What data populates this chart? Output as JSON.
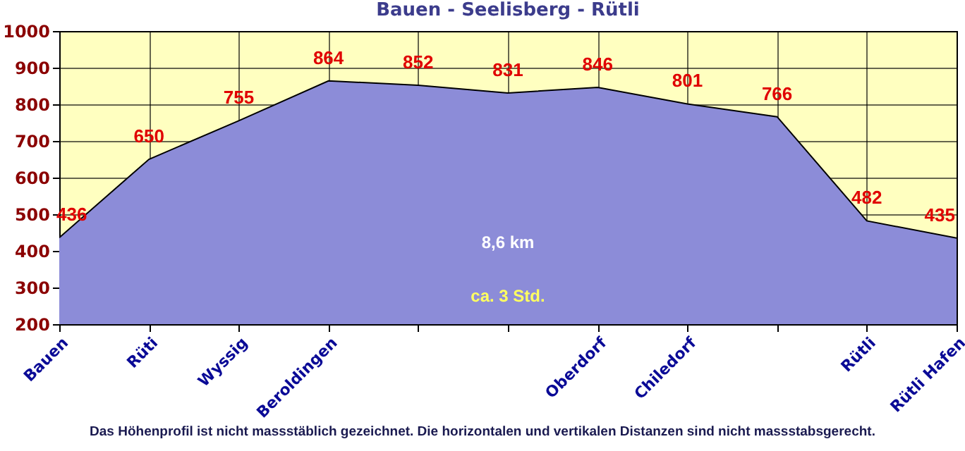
{
  "chart_data": {
    "type": "area",
    "title": "Bauen - Seelisberg - Rütli",
    "categories": [
      "Bauen",
      "Rüti",
      "Wyssig",
      "Beroldingen",
      null,
      null,
      "Oberdorf",
      "Chiledorf",
      null,
      "Rütli",
      "Rütli Hafen"
    ],
    "series": [
      {
        "color": "#8c8cd8",
        "values": [
          436,
          650,
          755,
          864,
          852,
          831,
          846,
          801,
          766,
          482,
          435
        ]
      }
    ],
    "ylim": [
      200,
      1000
    ],
    "yticks": [
      200,
      300,
      400,
      500,
      600,
      700,
      800,
      900,
      {
        "value": 1000,
        "label": "1000"
      }
    ],
    "grid": true,
    "data_labels": true,
    "annotations": [
      "8,6 km",
      "ca. 3 Std.",
      "Das Höhenprofil ist nicht massstäblich gezeichnet. Die horizontalen und vertikalen Distanzen sind nicht massstabsgerecht."
    ]
  }
}
